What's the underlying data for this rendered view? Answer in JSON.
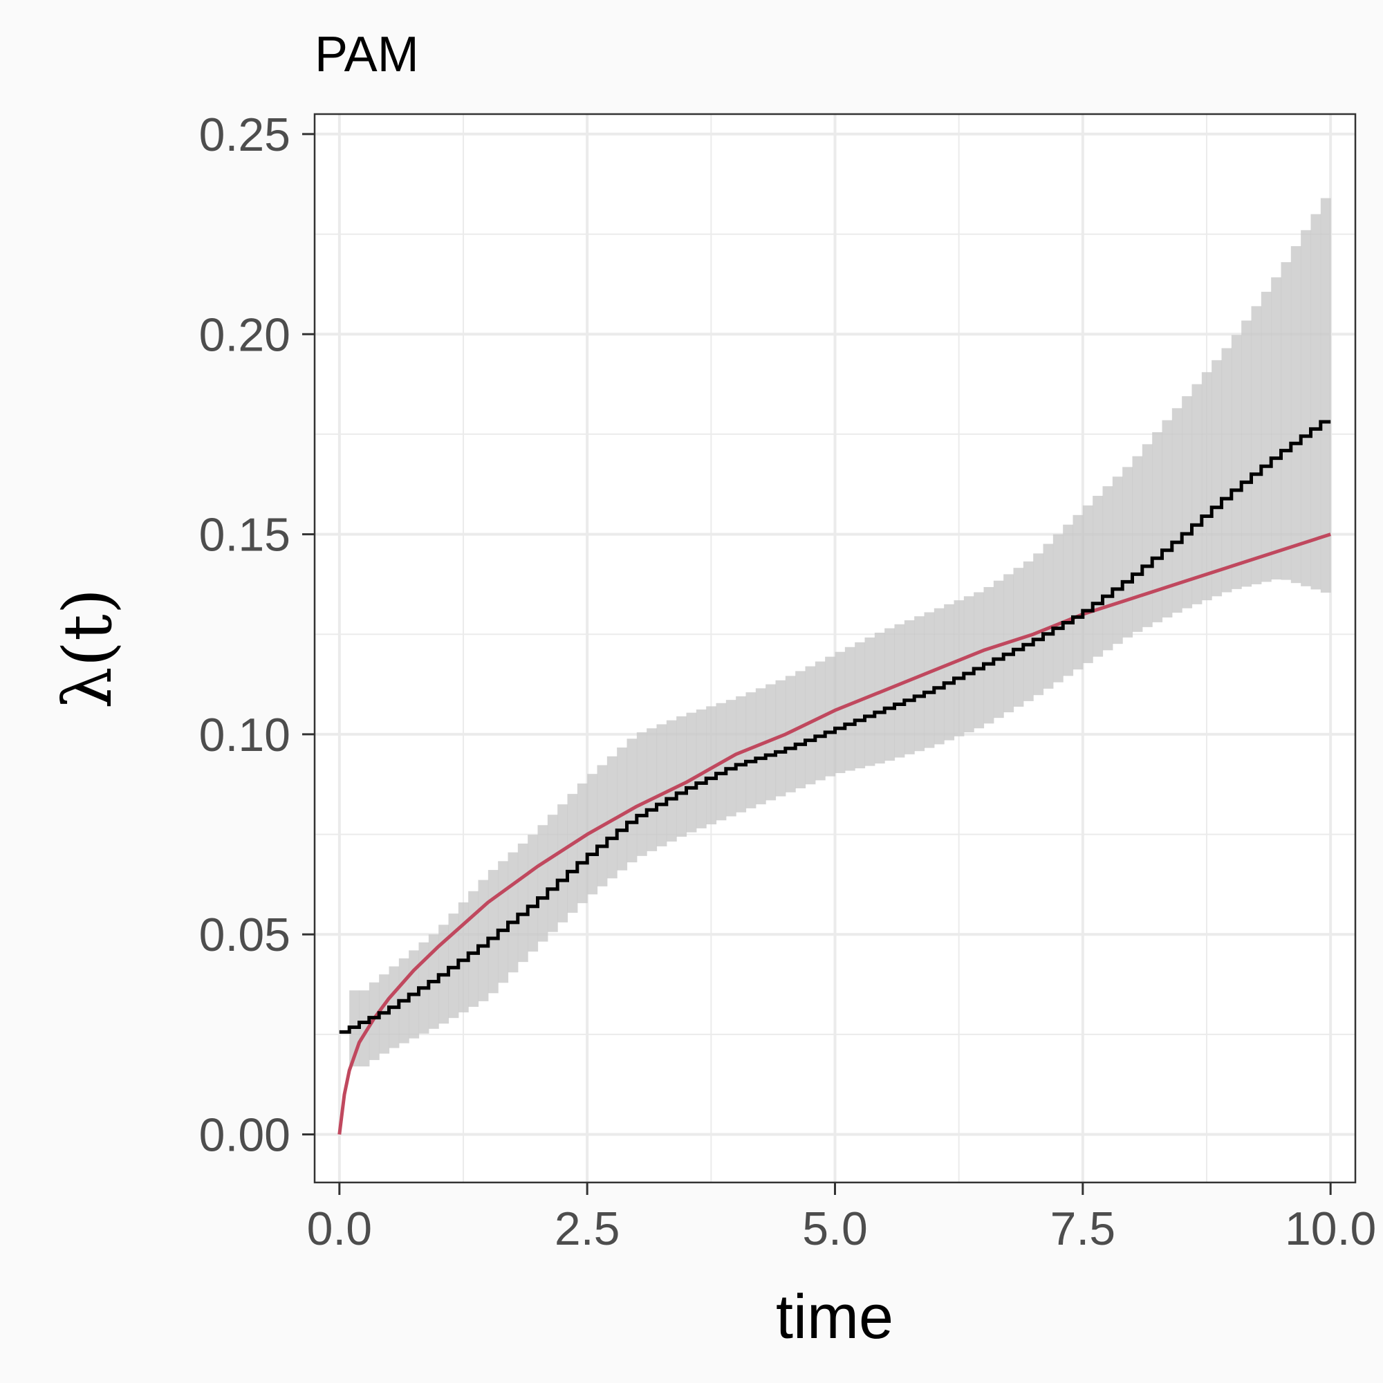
{
  "chart_data": {
    "type": "line",
    "title": "PAM",
    "xlabel": "time",
    "ylabel": "λ(t)",
    "xlim": [
      -0.25,
      10.25
    ],
    "ylim": [
      -0.012,
      0.255
    ],
    "x_ticks": [
      "0.0",
      "2.5",
      "5.0",
      "7.5",
      "10.0"
    ],
    "x_tick_values": [
      0,
      2.5,
      5,
      7.5,
      10
    ],
    "y_ticks": [
      "0.00",
      "0.05",
      "0.10",
      "0.15",
      "0.20",
      "0.25"
    ],
    "y_tick_values": [
      0,
      0.05,
      0.1,
      0.15,
      0.2,
      0.25
    ],
    "grid": true,
    "colors": {
      "estimate": "#000000",
      "truth": "#c0485e",
      "ci_band": "#c8c8c8",
      "panel_bg": "#ffffff",
      "page_bg": "#fafafa",
      "grid": "#ebebeb"
    },
    "series": [
      {
        "style": "step",
        "x": [
          0,
          0.5,
          1,
          1.5,
          2,
          2.5,
          3,
          3.5,
          4,
          4.5,
          5,
          5.5,
          6,
          6.5,
          7,
          7.5,
          8,
          8.5,
          9,
          9.5,
          10
        ],
        "y": [
          0.025,
          0.031,
          0.039,
          0.048,
          0.058,
          0.069,
          0.079,
          0.086,
          0.092,
          0.096,
          0.101,
          0.106,
          0.111,
          0.117,
          0.123,
          0.13,
          0.139,
          0.149,
          0.16,
          0.17,
          0.179
        ]
      },
      {
        "style": "line",
        "x": [
          0,
          0.05,
          0.1,
          0.2,
          0.35,
          0.5,
          0.75,
          1,
          1.5,
          2,
          2.5,
          3,
          3.5,
          4,
          4.5,
          5,
          5.5,
          6,
          6.5,
          7,
          7.5,
          8,
          8.5,
          9,
          9.5,
          10
        ],
        "y": [
          0,
          0.01,
          0.016,
          0.023,
          0.029,
          0.034,
          0.041,
          0.047,
          0.058,
          0.067,
          0.075,
          0.082,
          0.088,
          0.095,
          0.1,
          0.106,
          0.111,
          0.116,
          0.121,
          0.125,
          0.13,
          0.134,
          0.138,
          0.142,
          0.146,
          0.15
        ]
      },
      {
        "style": "band",
        "x": [
          0.25,
          0.5,
          1,
          1.5,
          2,
          2.5,
          3,
          3.5,
          4,
          4.5,
          5,
          5.5,
          6,
          6.5,
          7,
          7.5,
          8,
          8.5,
          9,
          9.5,
          10
        ],
        "lower": [
          0.017,
          0.021,
          0.027,
          0.034,
          0.047,
          0.059,
          0.069,
          0.075,
          0.08,
          0.085,
          0.09,
          0.093,
          0.097,
          0.102,
          0.109,
          0.117,
          0.125,
          0.131,
          0.136,
          0.139,
          0.135
        ],
        "upper": [
          0.036,
          0.041,
          0.051,
          0.065,
          0.076,
          0.089,
          0.1,
          0.105,
          0.109,
          0.114,
          0.12,
          0.126,
          0.131,
          0.136,
          0.144,
          0.156,
          0.168,
          0.183,
          0.198,
          0.216,
          0.236
        ]
      }
    ]
  }
}
